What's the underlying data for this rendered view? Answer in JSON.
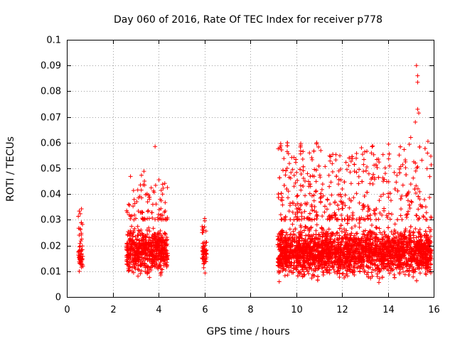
{
  "chart_data": {
    "type": "scatter",
    "title": "Day 060 of 2016, Rate Of TEC Index for receiver p778",
    "xlabel": "GPS time / hours",
    "ylabel": "ROTI / TECUs",
    "xlim": [
      0,
      16
    ],
    "ylim": [
      0,
      0.1
    ],
    "x_ticks": [
      0,
      2,
      4,
      6,
      8,
      10,
      12,
      14,
      16
    ],
    "x_tick_labels": [
      "0",
      "2",
      "4",
      "6",
      "8",
      "10",
      "12",
      "14",
      "16"
    ],
    "y_ticks": [
      0,
      0.01,
      0.02,
      0.03,
      0.04,
      0.05,
      0.06,
      0.07,
      0.08,
      0.09,
      0.1
    ],
    "y_tick_labels": [
      "0",
      "0.01",
      "0.02",
      "0.03",
      "0.04",
      "0.05",
      "0.06",
      "0.07",
      "0.08",
      "0.09",
      "0.1"
    ],
    "grid": true,
    "marker": "+",
    "series_color": "#ff0000",
    "clusters": [
      {
        "x_start": 0.5,
        "x_end": 0.7,
        "y_typical": [
          0.008,
          0.024
        ],
        "y_max": 0.035,
        "density": 60
      },
      {
        "x_start": 2.6,
        "x_end": 4.4,
        "y_typical": [
          0.006,
          0.03
        ],
        "y_max": 0.05,
        "density": 700
      },
      {
        "x_start": 5.9,
        "x_end": 6.1,
        "y_typical": [
          0.008,
          0.025
        ],
        "y_max": 0.031,
        "density": 60
      },
      {
        "x_start": 9.2,
        "x_end": 15.9,
        "y_typical": [
          0.005,
          0.03
        ],
        "y_max": 0.06,
        "density": 3500
      }
    ],
    "highlights": [
      {
        "x": 3.85,
        "y": 0.0585
      },
      {
        "x": 10.2,
        "y": 0.059
      },
      {
        "x": 10.9,
        "y": 0.06
      },
      {
        "x": 12.85,
        "y": 0.058
      },
      {
        "x": 15.25,
        "y": 0.09
      },
      {
        "x": 15.3,
        "y": 0.086
      },
      {
        "x": 15.3,
        "y": 0.0835
      },
      {
        "x": 15.3,
        "y": 0.073
      },
      {
        "x": 15.35,
        "y": 0.0715
      },
      {
        "x": 15.2,
        "y": 0.068
      },
      {
        "x": 15.75,
        "y": 0.0605
      },
      {
        "x": 15.0,
        "y": 0.062
      }
    ]
  }
}
